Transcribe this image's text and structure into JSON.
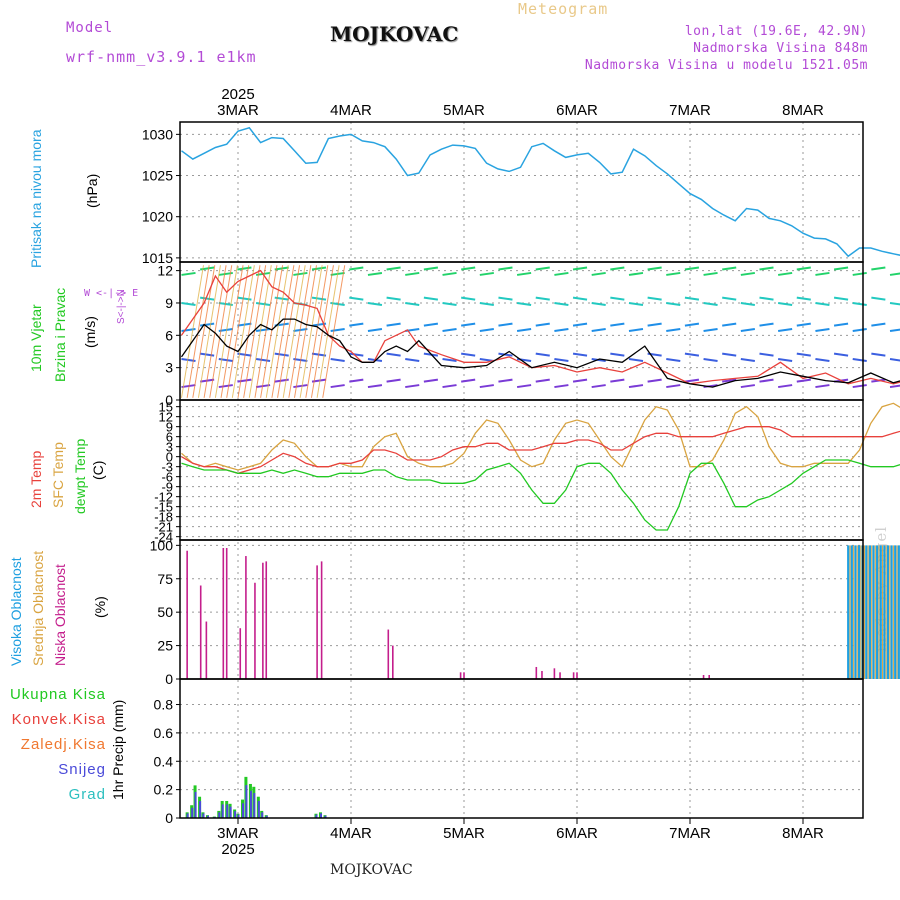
{
  "header": {
    "model_label": "Model",
    "model_name": "wrf-nmm_v3.9.1  e1km",
    "title": "MOJKOVAC",
    "subtitle": "Meteogram",
    "coords": "lon,lat (19.6E, 42.9N)",
    "elevation": "Nadmorska Visina 848m",
    "model_elevation": "Nadmorska Visina u modelu 1521.05m",
    "footer": "MOJKOVAC",
    "credit": "made by Angel"
  },
  "colors": {
    "pressure": "#29a3e0",
    "temp2m": "#e8413c",
    "sfc": "#d9a441",
    "dewpoint": "#22c922",
    "low_cloud": "#c41e8c",
    "mid_cloud": "#d9a441",
    "high_cloud": "#1e9fe0",
    "purple_text": "#b34bd6",
    "accum": "#22c922",
    "convective": "#e8413c",
    "freezing": "#f07830",
    "snow": "#4a4ad9",
    "grad": "#2bbfbf"
  },
  "time_axis": {
    "year": "2025",
    "day_labels": [
      "3MAR",
      "4MAR",
      "5MAR",
      "6MAR",
      "7MAR",
      "8MAR"
    ]
  },
  "panel_labels": {
    "pressure": {
      "name": "Pritisak na nivou mora",
      "unit": "(hPa)"
    },
    "wind": {
      "name1": "10m Vjetar",
      "name2": "Brzina i Pravac",
      "unit": "(m/s)",
      "compass": "W  <-|->  E",
      "compass2": "S<-|->N"
    },
    "temp": {
      "name1": "2m Temp",
      "name2": "SFC Temp",
      "name3": "dewpt Temp",
      "unit": "(C)"
    },
    "cloud": {
      "name1": "Visoka Oblacnost",
      "name2": "Srednja Oblacnost",
      "name3": "Niska Oblacnost",
      "unit": "(%)"
    },
    "precip": {
      "unit": "1hr Precip (mm)",
      "legend": [
        "Ukupna Kisa",
        "Konvek.Kisa",
        "Zaledj.Kisa",
        "Snijeg",
        "Grad"
      ]
    }
  },
  "chart_data": [
    {
      "type": "line",
      "name": "pressure",
      "x_unit": "days from 3MAR 00Z",
      "ylim": [
        1014.5,
        1031.5
      ],
      "yticks": [
        "1015",
        "1020",
        "1025",
        "1030"
      ],
      "x": [
        -0.5,
        -0.4,
        -0.3,
        -0.2,
        -0.1,
        0,
        0.1,
        0.2,
        0.3,
        0.4,
        0.5,
        0.6,
        0.7,
        0.8,
        0.9,
        1,
        1.1,
        1.2,
        1.3,
        1.4,
        1.5,
        1.6,
        1.7,
        1.8,
        1.9,
        2,
        2.1,
        2.2,
        2.3,
        2.4,
        2.5,
        2.6,
        2.7,
        2.8,
        2.9,
        3,
        3.1,
        3.2,
        3.3,
        3.4,
        3.5,
        3.6,
        3.7,
        3.8,
        3.9,
        4,
        4.1,
        4.2,
        4.3,
        4.4,
        4.5,
        4.6,
        4.7,
        4.8,
        4.9,
        5,
        5.1,
        5.2,
        5.3,
        5.4,
        5.5,
        5.6,
        5.7,
        5.8,
        5.9,
        6,
        6.1
      ],
      "y": [
        1028,
        1027,
        1027.7,
        1028.4,
        1028.8,
        1030.4,
        1030.8,
        1029,
        1029.6,
        1029.5,
        1028,
        1026.5,
        1026.6,
        1029.5,
        1029.8,
        1030,
        1029.2,
        1029,
        1028.5,
        1027,
        1025,
        1025.3,
        1027.5,
        1028.2,
        1028.7,
        1028.6,
        1028.3,
        1026.5,
        1025.8,
        1025.5,
        1026,
        1028.5,
        1028.9,
        1028,
        1027.2,
        1027.5,
        1027.7,
        1026.6,
        1025.2,
        1025.4,
        1028.2,
        1027.4,
        1026.2,
        1025.2,
        1024,
        1022.8,
        1022.1,
        1021,
        1020.2,
        1019.5,
        1021,
        1020.8,
        1019.8,
        1019.5,
        1018.9,
        1018,
        1017.4,
        1017.3,
        1016.7,
        1015.2,
        1016.2,
        1016.2,
        1015.8,
        1015.5,
        1015.2,
        1015,
        1015
      ]
    },
    {
      "type": "line",
      "name": "wind_speed",
      "x_unit": "days from 3MAR 00Z",
      "ylim": [
        0,
        12.8
      ],
      "yticks": [
        "0",
        "3",
        "6",
        "9",
        "12"
      ],
      "series": [
        {
          "name": "avg",
          "x": [
            -0.5,
            -0.4,
            -0.3,
            -0.2,
            -0.1,
            0,
            0.1,
            0.2,
            0.3,
            0.4,
            0.5,
            0.6,
            0.7,
            0.8,
            0.9,
            1,
            1.1,
            1.2,
            1.3,
            1.4,
            1.5,
            1.6,
            1.8,
            2,
            2.2,
            2.4,
            2.6,
            2.8,
            3,
            3.2,
            3.4,
            3.6,
            3.8,
            4,
            4.2,
            4.4,
            4.6,
            4.8,
            5,
            5.2,
            5.4,
            5.6,
            5.8,
            6,
            6.1
          ],
          "y": [
            4,
            5.5,
            7,
            6.2,
            5,
            4.5,
            6,
            7,
            6.5,
            7.5,
            7.5,
            7,
            6.8,
            6,
            5.5,
            4,
            3.5,
            3.5,
            4.5,
            5,
            4.5,
            5.5,
            3.2,
            3,
            3.2,
            4.5,
            3,
            3.5,
            3,
            3.8,
            3.5,
            5,
            2,
            1.5,
            1.2,
            1.8,
            2,
            2.6,
            2.2,
            1.8,
            1.6,
            2.5,
            1.6,
            2.2,
            2.2
          ]
        },
        {
          "name": "gust",
          "x": [
            -0.5,
            -0.4,
            -0.3,
            -0.2,
            -0.1,
            0,
            0.1,
            0.2,
            0.3,
            0.4,
            0.5,
            0.6,
            0.7,
            0.8,
            0.9,
            1,
            1.1,
            1.2,
            1.3,
            1.4,
            1.5,
            1.6,
            1.8,
            2,
            2.2,
            2.4,
            2.6,
            2.8,
            3,
            3.2,
            3.4,
            3.6,
            3.8,
            4,
            4.2,
            4.4,
            4.6,
            4.8,
            5,
            5.2,
            5.4,
            5.6,
            5.8,
            6,
            6.1
          ],
          "y": [
            6,
            7.5,
            9,
            11.5,
            10,
            11,
            11.5,
            12,
            10.5,
            10,
            9,
            8.8,
            8.5,
            6,
            5,
            4.5,
            3.5,
            3.5,
            5.5,
            6,
            6.5,
            5,
            4.2,
            3.5,
            3.5,
            4,
            3,
            3.2,
            2.6,
            3,
            2.6,
            3.5,
            2.5,
            1.5,
            1.8,
            2,
            2.2,
            3.5,
            2,
            2.5,
            1.5,
            2,
            1.5,
            2,
            2
          ]
        }
      ]
    },
    {
      "type": "line",
      "name": "temperature",
      "x_unit": "days from 3MAR 00Z",
      "ylim": [
        -25,
        17
      ],
      "yticks": [
        "-24",
        "-21",
        "-18",
        "-15",
        "-12",
        "-9",
        "-6",
        "-3",
        "0",
        "3",
        "6",
        "9",
        "12",
        "15"
      ],
      "x": [
        -0.5,
        -0.4,
        -0.3,
        -0.2,
        -0.1,
        0,
        0.1,
        0.2,
        0.3,
        0.4,
        0.5,
        0.6,
        0.7,
        0.8,
        0.9,
        1,
        1.1,
        1.2,
        1.3,
        1.4,
        1.5,
        1.6,
        1.7,
        1.8,
        1.9,
        2,
        2.1,
        2.2,
        2.3,
        2.4,
        2.5,
        2.6,
        2.7,
        2.8,
        2.9,
        3,
        3.1,
        3.2,
        3.3,
        3.4,
        3.5,
        3.6,
        3.7,
        3.8,
        3.9,
        4,
        4.1,
        4.2,
        4.3,
        4.4,
        4.5,
        4.6,
        4.7,
        4.8,
        4.9,
        5,
        5.1,
        5.2,
        5.3,
        5.4,
        5.5,
        5.6,
        5.7,
        5.8,
        5.9,
        6,
        6.1
      ],
      "series": [
        {
          "name": "t2m",
          "y": [
            0,
            -2,
            -3,
            -3,
            -4,
            -5,
            -4,
            -3,
            -1,
            1,
            0,
            -2,
            -3,
            -3,
            -2,
            -2,
            -1,
            2,
            2,
            1,
            -1,
            -1,
            -1,
            0,
            2,
            3,
            3,
            4,
            4,
            2,
            2,
            2,
            3,
            4,
            4,
            5,
            5,
            4,
            2,
            2,
            4,
            6,
            7,
            7,
            6,
            6,
            6,
            6,
            7,
            8,
            9,
            9,
            9,
            8,
            6,
            6,
            6,
            6,
            6,
            6,
            6,
            6,
            6,
            7,
            8,
            9,
            9
          ]
        },
        {
          "name": "sfc",
          "y": [
            1,
            -2,
            -3,
            -2,
            -3,
            -4,
            -3,
            -2,
            2,
            5,
            4,
            0,
            -3,
            -3,
            -2,
            -3,
            -3,
            3,
            6,
            7,
            0,
            -2,
            -3,
            -3,
            -2,
            1,
            7,
            11,
            10,
            5,
            -1,
            -3,
            -2,
            5,
            10,
            11,
            10,
            5,
            0,
            -3,
            4,
            11,
            15,
            14,
            8,
            -3,
            -3,
            -1,
            5,
            13,
            15,
            12,
            3,
            -2,
            -3,
            -3,
            -2,
            -2,
            -2,
            -2,
            2,
            10,
            15,
            16,
            14,
            14,
            12
          ]
        },
        {
          "name": "dewpoint",
          "y": [
            -2,
            -3,
            -4,
            -4,
            -4,
            -5,
            -5,
            -5,
            -4,
            -5,
            -4,
            -5,
            -6,
            -6,
            -5,
            -5,
            -5,
            -4,
            -4,
            -6,
            -7,
            -7,
            -7,
            -8,
            -8,
            -8,
            -7,
            -4,
            -3,
            -2,
            -5,
            -10,
            -14,
            -14,
            -10,
            -3,
            -2,
            -2,
            -5,
            -10,
            -14,
            -19,
            -22,
            -22,
            -15,
            -5,
            -2,
            -2,
            -8,
            -15,
            -15,
            -13,
            -12,
            -10,
            -8,
            -5,
            -3,
            -1,
            -1,
            -1,
            -2,
            -3,
            -3,
            -3,
            -2,
            -3,
            -3
          ]
        }
      ]
    },
    {
      "type": "bar",
      "name": "cloud_cover",
      "x_unit": "days from 3MAR 00Z",
      "ylim": [
        0,
        100
      ],
      "yticks": [
        "0",
        "25",
        "50",
        "75",
        "100"
      ],
      "series": [
        {
          "name": "low",
          "x": [
            -0.45,
            -0.33,
            -0.28,
            -0.13,
            -0.1,
            0.02,
            0.07,
            0.15,
            0.22,
            0.25,
            0.7,
            0.74,
            1.33,
            1.37,
            1.97,
            2.0,
            2.64,
            2.69,
            2.8,
            2.85,
            2.97,
            3.0,
            4.12,
            4.17
          ],
          "y": [
            96,
            70,
            43,
            98,
            98,
            38,
            92,
            72,
            87,
            88,
            85,
            88,
            37,
            25,
            5,
            5,
            9,
            6,
            8,
            5,
            5,
            5,
            3,
            3
          ]
        },
        {
          "name": "high_mid",
          "x_start": 5.4,
          "x_end": 6.08,
          "value": 100
        }
      ]
    },
    {
      "type": "bar",
      "name": "precip_1hr",
      "x_unit": "days from 3MAR 00Z",
      "ylim": [
        0,
        0.98
      ],
      "yticks": [
        "0",
        "0.2",
        "0.4",
        "0.6",
        "0.8"
      ],
      "x": [
        -0.45,
        -0.41,
        -0.38,
        -0.34,
        -0.31,
        -0.27,
        -0.21,
        -0.17,
        -0.14,
        -0.1,
        -0.07,
        -0.03,
        0,
        0.04,
        0.07,
        0.11,
        0.14,
        0.18,
        0.21,
        0.25,
        0.69,
        0.73,
        0.77
      ],
      "y": [
        0.04,
        0.09,
        0.23,
        0.15,
        0.04,
        0.02,
        0.01,
        0.05,
        0.12,
        0.12,
        0.1,
        0.06,
        0.03,
        0.13,
        0.29,
        0.24,
        0.22,
        0.15,
        0.05,
        0.02,
        0.03,
        0.04,
        0.02
      ]
    }
  ]
}
